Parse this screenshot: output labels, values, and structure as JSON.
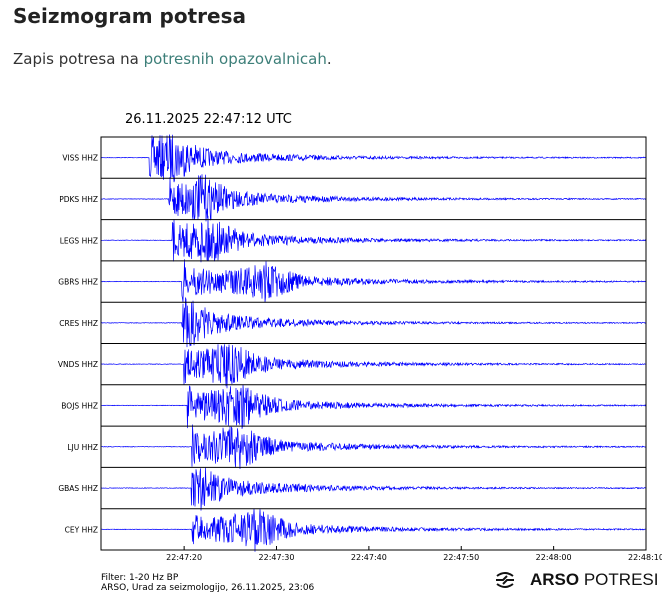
{
  "page": {
    "title": "Seizmogram potresa",
    "intro_prefix": "Zapis potresa na ",
    "intro_link": "potresnih opazovalnicah",
    "intro_suffix": "."
  },
  "chart_data": {
    "type": "line",
    "title": "26.11.2025  22:47:12 UTC",
    "x_ticks": [
      "22:47:20",
      "22:47:30",
      "22:47:40",
      "22:47:50",
      "22:48:00",
      "22:48:10"
    ],
    "x_range_seconds_after_22_47_00": [
      11,
      70
    ],
    "traces": [
      {
        "name": "VISS HHZ",
        "arrival": 16.4,
        "peak": 18.7
      },
      {
        "name": "PDKS HHZ",
        "arrival": 18.5,
        "peak": 22
      },
      {
        "name": "LEGS HHZ",
        "arrival": 18.8,
        "peak": 22.8
      },
      {
        "name": "GBRS HHZ",
        "arrival": 19.9,
        "peak": 29
      },
      {
        "name": "CRES HHZ",
        "arrival": 19.9,
        "peak": 20.2
      },
      {
        "name": "VNDS HHZ",
        "arrival": 20.1,
        "peak": 25
      },
      {
        "name": "BOJS HHZ",
        "arrival": 20.5,
        "peak": 26
      },
      {
        "name": "LJU HHZ",
        "arrival": 21,
        "peak": 26
      },
      {
        "name": "GBAS HHZ",
        "arrival": 20.9,
        "peak": 21
      },
      {
        "name": "CEY HHZ",
        "arrival": 21,
        "peak": 28
      }
    ],
    "line_color": "#0000ff"
  },
  "footer": {
    "filter": "Filter: 1-20 Hz BP",
    "credit": "ARSO, Urad za seizmologijo, 26.11.2025, 23:06"
  },
  "logo": {
    "bold": "ARSO",
    "light": " POTRESI"
  }
}
